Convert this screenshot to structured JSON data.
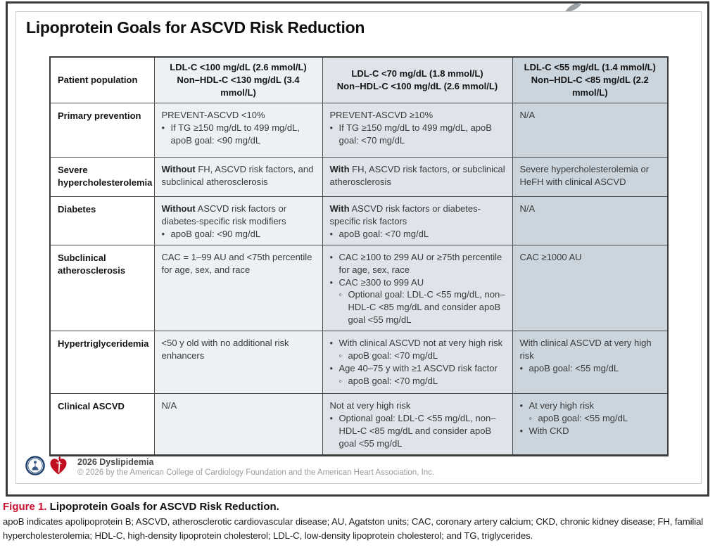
{
  "figure": {
    "title": "Lipoprotein Goals for ASCVD Risk Reduction"
  },
  "table": {
    "corner_header": "Patient population",
    "columns": [
      {
        "line1": "LDL-C <100 mg/dL (2.6 mmol/L)",
        "line2": "Non–HDL-C <130 mg/dL (3.4 mmol/L)"
      },
      {
        "line1": "LDL-C <70 mg/dL (1.8 mmol/L)",
        "line2": "Non–HDL-C <100 mg/dL (2.6 mmol/L)"
      },
      {
        "line1": "LDL-C <55 mg/dL (1.4 mmol/L)",
        "line2": "Non–HDL-C <85 mg/dL (2.2 mmol/L)"
      }
    ],
    "rows": [
      {
        "key": "primary-prevention",
        "label": "Primary prevention",
        "cells": [
          [
            {
              "t": "PREVENT-ASCVD <10%"
            },
            {
              "bu": "•",
              "t": "If TG ≥150 mg/dL to 499 mg/dL, apoB goal: <90 mg/dL"
            }
          ],
          [
            {
              "t": "PREVENT-ASCVD ≥10%"
            },
            {
              "bu": "•",
              "t": "If TG ≥150 mg/dL to 499 mg/dL, apoB goal: <70 mg/dL"
            }
          ],
          [
            {
              "t": "N/A"
            }
          ]
        ]
      },
      {
        "key": "severe-hypercholesterolemia",
        "label": "Severe hypercholesterolemia",
        "cells": [
          [
            {
              "b": "Without",
              "t": " FH, ASCVD risk factors, and subclinical atherosclerosis"
            }
          ],
          [
            {
              "b": "With",
              "t": " FH, ASCVD risk factors, or subclinical atherosclerosis"
            }
          ],
          [
            {
              "t": "Severe hypercholesterolemia or HeFH with clinical ASCVD"
            }
          ]
        ]
      },
      {
        "key": "diabetes",
        "label": "Diabetes",
        "cells": [
          [
            {
              "b": "Without",
              "t": " ASCVD risk factors or diabetes-specific risk modifiers"
            },
            {
              "bu": "•",
              "t": "apoB goal: <90 mg/dL"
            }
          ],
          [
            {
              "b": "With",
              "t": " ASCVD risk factors or diabetes-specific risk factors"
            },
            {
              "bu": "•",
              "t": "apoB goal: <70 mg/dL"
            }
          ],
          [
            {
              "t": "N/A"
            }
          ]
        ]
      },
      {
        "key": "subclinical-atherosclerosis",
        "label": "Subclinical atherosclerosis",
        "cells": [
          [
            {
              "t": "CAC = 1–99 AU and <75th percentile for age, sex, and race"
            }
          ],
          [
            {
              "bu": "•",
              "t": "CAC ≥100 to 299 AU or ≥75th percentile for age, sex, race"
            },
            {
              "bu": "•",
              "t": "CAC ≥300 to 999 AU"
            },
            {
              "bu": "◦",
              "sub": true,
              "t": "Optional goal: LDL-C <55 mg/dL, non–HDL-C <85 mg/dL and consider apoB goal <55 mg/dL"
            }
          ],
          [
            {
              "t": "CAC ≥1000 AU"
            }
          ]
        ]
      },
      {
        "key": "hypertriglyceridemia",
        "label": "Hypertriglyceridemia",
        "cells": [
          [
            {
              "t": "<50 y old with no additional risk enhancers"
            }
          ],
          [
            {
              "bu": "•",
              "t": "With clinical ASCVD not at very high risk"
            },
            {
              "bu": "◦",
              "sub": true,
              "t": "apoB goal: <70 mg/dL"
            },
            {
              "bu": "•",
              "t": "Age 40–75 y with ≥1 ASCVD risk factor"
            },
            {
              "bu": "◦",
              "sub": true,
              "t": "apoB goal: <70 mg/dL"
            }
          ],
          [
            {
              "t": "With clinical ASCVD at very high risk"
            },
            {
              "bu": "•",
              "t": "apoB goal: <55 mg/dL"
            }
          ]
        ]
      },
      {
        "key": "clinical-ascvd",
        "label": "Clinical ASCVD",
        "cells": [
          [
            {
              "t": "N/A"
            }
          ],
          [
            {
              "t": "Not at very high risk"
            },
            {
              "bu": "•",
              "t": "Optional goal: LDL-C <55 mg/dL, non–HDL-C <85 mg/dL and consider apoB goal <55 mg/dL"
            }
          ],
          [
            {
              "bu": "•",
              "t": "At very high risk"
            },
            {
              "bu": "◦",
              "sub": true,
              "t": "apoB goal: <55 mg/dL"
            },
            {
              "bu": "•",
              "t": "With CKD"
            }
          ]
        ]
      }
    ]
  },
  "footer": {
    "program": "2026 Dyslipidemia",
    "copyright": "© 2026 by the American College of Cardiology Foundation and the American Heart Association, Inc."
  },
  "caption": {
    "figure_label": "Figure 1.",
    "figure_title": " Lipoprotein Goals for ASCVD Risk Reduction.",
    "abbreviations": "apoB indicates apolipoprotein B; ASCVD, atherosclerotic cardiovascular disease; AU, Agatston units; CAC, coronary artery calcium; CKD, chronic kidney disease; FH, familial hypercholesterolemia; HDL-C, high-density lipoprotein cholesterol; LDL-C, low-density lipoprotein cholesterol; and TG, triglycerides."
  },
  "colors": {
    "accent_red": "#c8102e",
    "aha_red": "#c10e21",
    "acc_navy": "#1c3f6e",
    "col2_bg": "#edf1f4",
    "col3_bg": "#dee4ea",
    "col4_bg": "#cbd5dd",
    "frame_border": "#3a3a3a"
  }
}
